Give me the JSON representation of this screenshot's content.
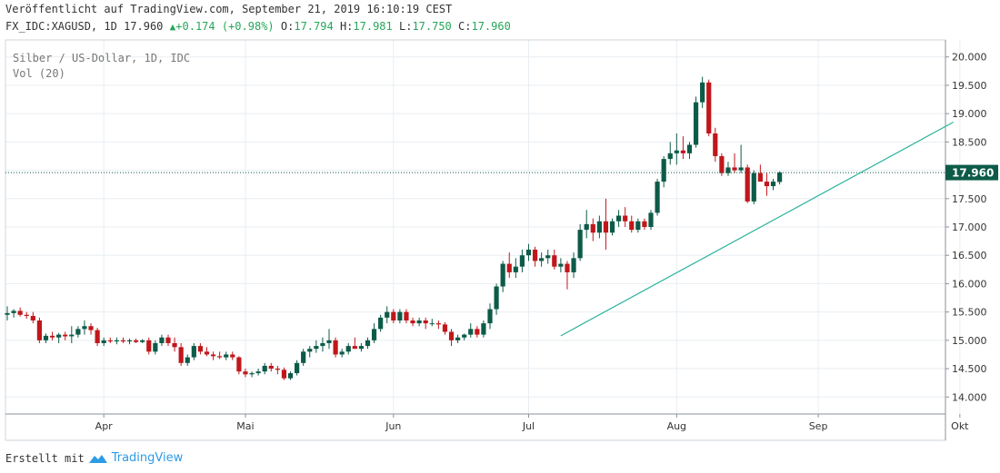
{
  "header": {
    "published": "Veröffentlicht auf TradingView.com, September 21, 2019 16:10:19 CEST",
    "symbol": "FX_IDC:XAGUSD, 1D",
    "last": "17.960",
    "change": "+0.174 (+0.98%)",
    "o_label": "O:",
    "o_value": "17.794",
    "h_label": "H:",
    "h_value": "17.981",
    "l_label": "L:",
    "l_value": "17.750",
    "c_label": "C:",
    "c_value": "17.960"
  },
  "legend": {
    "line1": "Silber / US-Dollar, 1D, IDC",
    "line2": "Vol (20)"
  },
  "footer": {
    "created_with": "Erstellt mit",
    "brand": "TradingView"
  },
  "colors": {
    "up": "#0c5b48",
    "down": "#c0171b",
    "trendline": "#2bb39a",
    "grid": "#e8eef2",
    "price_badge": "#0c5b48"
  },
  "chart_data": {
    "type": "candlestick",
    "title": "Silber / US-Dollar, 1D, IDC",
    "ylim": [
      13.7,
      20.3
    ],
    "y_ticks": [
      "20.000",
      "19.500",
      "19.000",
      "18.500",
      "18.000",
      "17.500",
      "17.000",
      "16.500",
      "16.000",
      "15.500",
      "15.000",
      "14.500",
      "14.000"
    ],
    "x_ticks": [
      "Apr",
      "Mai",
      "Jun",
      "Jul",
      "Aug",
      "Sep",
      "Okt"
    ],
    "x_tick_positions": [
      15,
      37,
      60,
      81,
      104,
      126,
      148
    ],
    "last_price": 17.96,
    "last_price_label": "17.960",
    "trendline": {
      "from": [
        86,
        15.08
      ],
      "to": [
        147,
        18.85
      ]
    },
    "candles": [
      {
        "o": 15.45,
        "h": 15.6,
        "l": 15.35,
        "c": 15.48
      },
      {
        "o": 15.48,
        "h": 15.55,
        "l": 15.4,
        "c": 15.52
      },
      {
        "o": 15.52,
        "h": 15.58,
        "l": 15.42,
        "c": 15.45
      },
      {
        "o": 15.45,
        "h": 15.5,
        "l": 15.38,
        "c": 15.43
      },
      {
        "o": 15.43,
        "h": 15.5,
        "l": 15.3,
        "c": 15.35
      },
      {
        "o": 15.35,
        "h": 15.4,
        "l": 14.95,
        "c": 15.0
      },
      {
        "o": 15.0,
        "h": 15.12,
        "l": 14.95,
        "c": 15.08
      },
      {
        "o": 15.08,
        "h": 15.15,
        "l": 15.0,
        "c": 15.05
      },
      {
        "o": 15.05,
        "h": 15.13,
        "l": 14.95,
        "c": 15.1
      },
      {
        "o": 15.1,
        "h": 15.15,
        "l": 15.0,
        "c": 15.07
      },
      {
        "o": 15.07,
        "h": 15.25,
        "l": 14.95,
        "c": 15.1
      },
      {
        "o": 15.1,
        "h": 15.25,
        "l": 15.05,
        "c": 15.2
      },
      {
        "o": 15.2,
        "h": 15.35,
        "l": 15.1,
        "c": 15.25
      },
      {
        "o": 15.25,
        "h": 15.3,
        "l": 15.1,
        "c": 15.18
      },
      {
        "o": 15.18,
        "h": 15.22,
        "l": 14.9,
        "c": 14.95
      },
      {
        "o": 14.95,
        "h": 15.05,
        "l": 14.9,
        "c": 15.0
      },
      {
        "o": 15.0,
        "h": 15.05,
        "l": 14.95,
        "c": 14.98
      },
      {
        "o": 14.98,
        "h": 15.05,
        "l": 14.93,
        "c": 15.0
      },
      {
        "o": 15.0,
        "h": 15.05,
        "l": 14.95,
        "c": 14.98
      },
      {
        "o": 14.98,
        "h": 15.03,
        "l": 14.93,
        "c": 15.0
      },
      {
        "o": 15.0,
        "h": 15.03,
        "l": 14.95,
        "c": 14.97
      },
      {
        "o": 14.97,
        "h": 15.02,
        "l": 14.95,
        "c": 15.0
      },
      {
        "o": 15.0,
        "h": 15.05,
        "l": 14.75,
        "c": 14.8
      },
      {
        "o": 14.8,
        "h": 15.0,
        "l": 14.75,
        "c": 14.95
      },
      {
        "o": 14.95,
        "h": 15.1,
        "l": 14.9,
        "c": 15.05
      },
      {
        "o": 15.05,
        "h": 15.1,
        "l": 14.9,
        "c": 14.95
      },
      {
        "o": 14.95,
        "h": 15.05,
        "l": 14.8,
        "c": 14.88
      },
      {
        "o": 14.88,
        "h": 14.95,
        "l": 14.55,
        "c": 14.6
      },
      {
        "o": 14.6,
        "h": 14.75,
        "l": 14.55,
        "c": 14.7
      },
      {
        "o": 14.7,
        "h": 14.95,
        "l": 14.65,
        "c": 14.9
      },
      {
        "o": 14.9,
        "h": 14.95,
        "l": 14.75,
        "c": 14.8
      },
      {
        "o": 14.8,
        "h": 14.88,
        "l": 14.72,
        "c": 14.75
      },
      {
        "o": 14.75,
        "h": 14.8,
        "l": 14.65,
        "c": 14.72
      },
      {
        "o": 14.72,
        "h": 14.8,
        "l": 14.67,
        "c": 14.7
      },
      {
        "o": 14.7,
        "h": 14.8,
        "l": 14.65,
        "c": 14.75
      },
      {
        "o": 14.75,
        "h": 14.8,
        "l": 14.65,
        "c": 14.7
      },
      {
        "o": 14.7,
        "h": 14.72,
        "l": 14.4,
        "c": 14.45
      },
      {
        "o": 14.45,
        "h": 14.5,
        "l": 14.35,
        "c": 14.4
      },
      {
        "o": 14.4,
        "h": 14.45,
        "l": 14.35,
        "c": 14.42
      },
      {
        "o": 14.42,
        "h": 14.5,
        "l": 14.38,
        "c": 14.45
      },
      {
        "o": 14.45,
        "h": 14.6,
        "l": 14.4,
        "c": 14.55
      },
      {
        "o": 14.55,
        "h": 14.6,
        "l": 14.45,
        "c": 14.5
      },
      {
        "o": 14.5,
        "h": 14.55,
        "l": 14.4,
        "c": 14.48
      },
      {
        "o": 14.48,
        "h": 14.52,
        "l": 14.3,
        "c": 14.33
      },
      {
        "o": 14.33,
        "h": 14.45,
        "l": 14.3,
        "c": 14.42
      },
      {
        "o": 14.42,
        "h": 14.65,
        "l": 14.38,
        "c": 14.6
      },
      {
        "o": 14.6,
        "h": 14.85,
        "l": 14.55,
        "c": 14.8
      },
      {
        "o": 14.8,
        "h": 14.9,
        "l": 14.7,
        "c": 14.85
      },
      {
        "o": 14.85,
        "h": 15.0,
        "l": 14.78,
        "c": 14.9
      },
      {
        "o": 14.9,
        "h": 15.05,
        "l": 14.8,
        "c": 14.95
      },
      {
        "o": 14.95,
        "h": 15.2,
        "l": 14.85,
        "c": 15.0
      },
      {
        "o": 15.0,
        "h": 15.05,
        "l": 14.7,
        "c": 14.75
      },
      {
        "o": 14.75,
        "h": 14.85,
        "l": 14.7,
        "c": 14.8
      },
      {
        "o": 14.8,
        "h": 14.95,
        "l": 14.75,
        "c": 14.9
      },
      {
        "o": 14.9,
        "h": 15.05,
        "l": 14.85,
        "c": 14.85
      },
      {
        "o": 14.85,
        "h": 14.95,
        "l": 14.8,
        "c": 14.9
      },
      {
        "o": 14.9,
        "h": 15.05,
        "l": 14.85,
        "c": 15.0
      },
      {
        "o": 15.0,
        "h": 15.3,
        "l": 14.95,
        "c": 15.2
      },
      {
        "o": 15.2,
        "h": 15.45,
        "l": 15.15,
        "c": 15.4
      },
      {
        "o": 15.4,
        "h": 15.6,
        "l": 15.3,
        "c": 15.5
      },
      {
        "o": 15.5,
        "h": 15.55,
        "l": 15.3,
        "c": 15.35
      },
      {
        "o": 15.35,
        "h": 15.55,
        "l": 15.3,
        "c": 15.5
      },
      {
        "o": 15.5,
        "h": 15.55,
        "l": 15.3,
        "c": 15.35
      },
      {
        "o": 15.35,
        "h": 15.4,
        "l": 15.25,
        "c": 15.3
      },
      {
        "o": 15.3,
        "h": 15.4,
        "l": 15.25,
        "c": 15.35
      },
      {
        "o": 15.35,
        "h": 15.4,
        "l": 15.2,
        "c": 15.3
      },
      {
        "o": 15.3,
        "h": 15.38,
        "l": 15.25,
        "c": 15.3
      },
      {
        "o": 15.3,
        "h": 15.35,
        "l": 15.2,
        "c": 15.28
      },
      {
        "o": 15.28,
        "h": 15.32,
        "l": 15.1,
        "c": 15.15
      },
      {
        "o": 15.15,
        "h": 15.2,
        "l": 14.9,
        "c": 15.0
      },
      {
        "o": 15.0,
        "h": 15.1,
        "l": 14.95,
        "c": 15.05
      },
      {
        "o": 15.05,
        "h": 15.12,
        "l": 15.0,
        "c": 15.1
      },
      {
        "o": 15.1,
        "h": 15.3,
        "l": 15.05,
        "c": 15.2
      },
      {
        "o": 15.2,
        "h": 15.25,
        "l": 15.05,
        "c": 15.1
      },
      {
        "o": 15.1,
        "h": 15.35,
        "l": 15.05,
        "c": 15.3
      },
      {
        "o": 15.3,
        "h": 15.65,
        "l": 15.2,
        "c": 15.55
      },
      {
        "o": 15.55,
        "h": 16.0,
        "l": 15.45,
        "c": 15.95
      },
      {
        "o": 15.95,
        "h": 16.4,
        "l": 15.85,
        "c": 16.35
      },
      {
        "o": 16.35,
        "h": 16.55,
        "l": 16.1,
        "c": 16.2
      },
      {
        "o": 16.2,
        "h": 16.45,
        "l": 16.1,
        "c": 16.3
      },
      {
        "o": 16.3,
        "h": 16.6,
        "l": 16.2,
        "c": 16.5
      },
      {
        "o": 16.5,
        "h": 16.7,
        "l": 16.4,
        "c": 16.6
      },
      {
        "o": 16.6,
        "h": 16.65,
        "l": 16.3,
        "c": 16.4
      },
      {
        "o": 16.4,
        "h": 16.55,
        "l": 16.3,
        "c": 16.45
      },
      {
        "o": 16.45,
        "h": 16.6,
        "l": 16.35,
        "c": 16.5
      },
      {
        "o": 16.5,
        "h": 16.6,
        "l": 16.25,
        "c": 16.3
      },
      {
        "o": 16.3,
        "h": 16.45,
        "l": 16.2,
        "c": 16.35
      },
      {
        "o": 16.35,
        "h": 16.4,
        "l": 15.9,
        "c": 16.2
      },
      {
        "o": 16.2,
        "h": 16.55,
        "l": 16.1,
        "c": 16.45
      },
      {
        "o": 16.45,
        "h": 17.05,
        "l": 16.4,
        "c": 16.95
      },
      {
        "o": 16.95,
        "h": 17.3,
        "l": 16.8,
        "c": 17.05
      },
      {
        "o": 17.05,
        "h": 17.15,
        "l": 16.75,
        "c": 16.9
      },
      {
        "o": 16.9,
        "h": 17.2,
        "l": 16.8,
        "c": 17.1
      },
      {
        "o": 17.1,
        "h": 17.5,
        "l": 16.6,
        "c": 16.9
      },
      {
        "o": 16.9,
        "h": 17.15,
        "l": 16.85,
        "c": 17.1
      },
      {
        "o": 17.1,
        "h": 17.3,
        "l": 17.0,
        "c": 17.2
      },
      {
        "o": 17.2,
        "h": 17.35,
        "l": 17.0,
        "c": 17.1
      },
      {
        "o": 17.1,
        "h": 17.2,
        "l": 16.9,
        "c": 16.95
      },
      {
        "o": 16.95,
        "h": 17.15,
        "l": 16.9,
        "c": 17.1
      },
      {
        "o": 17.1,
        "h": 17.15,
        "l": 16.95,
        "c": 17.0
      },
      {
        "o": 17.0,
        "h": 17.3,
        "l": 16.95,
        "c": 17.25
      },
      {
        "o": 17.25,
        "h": 17.85,
        "l": 17.2,
        "c": 17.8
      },
      {
        "o": 17.8,
        "h": 18.25,
        "l": 17.7,
        "c": 18.2
      },
      {
        "o": 18.2,
        "h": 18.5,
        "l": 18.1,
        "c": 18.3
      },
      {
        "o": 18.3,
        "h": 18.65,
        "l": 18.1,
        "c": 18.35
      },
      {
        "o": 18.35,
        "h": 18.6,
        "l": 18.2,
        "c": 18.3
      },
      {
        "o": 18.3,
        "h": 18.5,
        "l": 18.2,
        "c": 18.45
      },
      {
        "o": 18.45,
        "h": 19.3,
        "l": 18.4,
        "c": 19.2
      },
      {
        "o": 19.2,
        "h": 19.65,
        "l": 19.1,
        "c": 19.55
      },
      {
        "o": 19.55,
        "h": 19.6,
        "l": 18.6,
        "c": 18.65
      },
      {
        "o": 18.65,
        "h": 18.75,
        "l": 18.15,
        "c": 18.25
      },
      {
        "o": 18.25,
        "h": 18.3,
        "l": 17.9,
        "c": 17.95
      },
      {
        "o": 17.95,
        "h": 18.15,
        "l": 17.9,
        "c": 18.05
      },
      {
        "o": 18.05,
        "h": 18.3,
        "l": 17.95,
        "c": 18.0
      },
      {
        "o": 18.0,
        "h": 18.45,
        "l": 17.95,
        "c": 18.05
      },
      {
        "o": 18.05,
        "h": 18.1,
        "l": 17.42,
        "c": 17.45
      },
      {
        "o": 17.45,
        "h": 18.0,
        "l": 17.4,
        "c": 17.95
      },
      {
        "o": 17.95,
        "h": 18.1,
        "l": 17.8,
        "c": 17.8
      },
      {
        "o": 17.8,
        "h": 17.95,
        "l": 17.55,
        "c": 17.72
      },
      {
        "o": 17.72,
        "h": 17.85,
        "l": 17.65,
        "c": 17.8
      },
      {
        "o": 17.794,
        "h": 17.981,
        "l": 17.75,
        "c": 17.96
      }
    ]
  }
}
